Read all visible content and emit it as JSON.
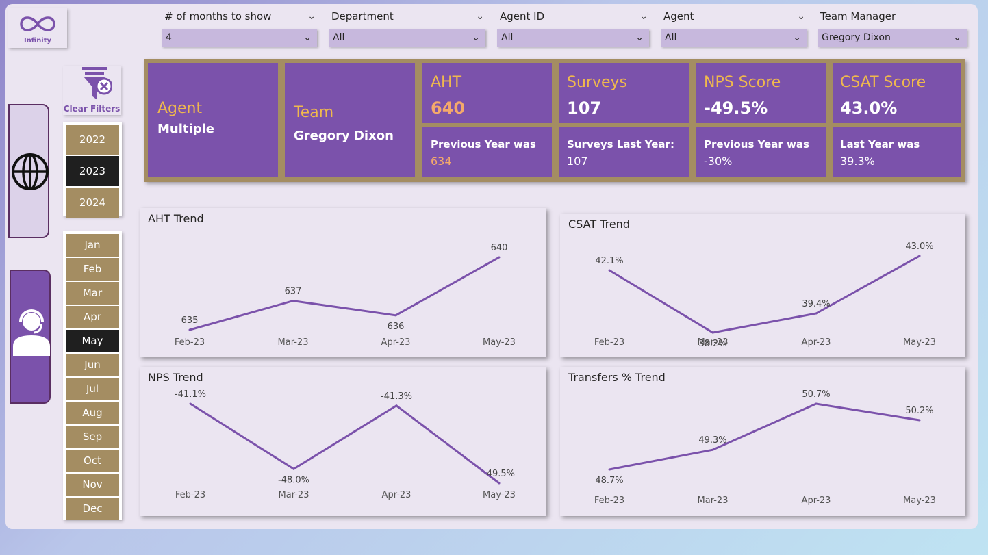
{
  "app": {
    "logo_text": "Infinity"
  },
  "filters": [
    {
      "label": "# of months to show",
      "value": "4"
    },
    {
      "label": "Department",
      "value": "All"
    },
    {
      "label": "Agent ID",
      "value": "All"
    },
    {
      "label": "Agent",
      "value": "All"
    },
    {
      "label": "Team Manager",
      "value": "Gregory Dixon"
    }
  ],
  "clear_filters_label": "Clear Filters",
  "years": [
    {
      "label": "2022",
      "selected": false
    },
    {
      "label": "2023",
      "selected": true
    },
    {
      "label": "2024",
      "selected": false
    }
  ],
  "months": [
    {
      "label": "Jan",
      "selected": false
    },
    {
      "label": "Feb",
      "selected": false
    },
    {
      "label": "Mar",
      "selected": false
    },
    {
      "label": "Apr",
      "selected": false
    },
    {
      "label": "May",
      "selected": true
    },
    {
      "label": "Jun",
      "selected": false
    },
    {
      "label": "Jul",
      "selected": false
    },
    {
      "label": "Aug",
      "selected": false
    },
    {
      "label": "Sep",
      "selected": false
    },
    {
      "label": "Oct",
      "selected": false
    },
    {
      "label": "Nov",
      "selected": false
    },
    {
      "label": "Dec",
      "selected": false
    }
  ],
  "side_nav": {
    "top_icon": "globe-icon",
    "bottom_icon": "agent-headset-icon"
  },
  "kpis": {
    "agent": {
      "title": "Agent",
      "value": "Multiple"
    },
    "team": {
      "title": "Team",
      "value": "Gregory Dixon"
    },
    "aht": {
      "title": "AHT",
      "value": "640",
      "sub_label": "Previous Year was",
      "sub_value": "634"
    },
    "surveys": {
      "title": "Surveys",
      "value": "107",
      "sub_label": "Surveys Last Year:",
      "sub_value": "107"
    },
    "nps": {
      "title": "NPS Score",
      "value": "-49.5%",
      "sub_label": "Previous Year was",
      "sub_value": "-30%"
    },
    "csat": {
      "title": "CSAT Score",
      "value": "43.0%",
      "sub_label": "Last Year was",
      "sub_value": "39.3%"
    }
  },
  "colors": {
    "accent": "#7b52ab",
    "gold": "#a48d62",
    "title_gold": "#f0b94d",
    "orange": "#f4a96b"
  },
  "chart_data": [
    {
      "type": "line",
      "title": "AHT Trend",
      "categories": [
        "Feb-23",
        "Mar-23",
        "Apr-23",
        "May-23"
      ],
      "values": [
        635,
        637,
        636,
        640
      ],
      "labels": [
        "635",
        "637",
        "636",
        "640"
      ]
    },
    {
      "type": "line",
      "title": "CSAT Trend",
      "categories": [
        "Feb-23",
        "Mar-23",
        "Apr-23",
        "May-23"
      ],
      "values": [
        42.1,
        38.2,
        39.4,
        43.0
      ],
      "labels": [
        "42.1%",
        "38.2%",
        "39.4%",
        "43.0%"
      ]
    },
    {
      "type": "line",
      "title": "NPS Trend",
      "categories": [
        "Feb-23",
        "Mar-23",
        "Apr-23",
        "May-23"
      ],
      "values": [
        -41.1,
        -48.0,
        -41.3,
        -49.5
      ],
      "labels": [
        "-41.1%",
        "-48.0%",
        "-41.3%",
        "-49.5%"
      ]
    },
    {
      "type": "line",
      "title": "Transfers % Trend",
      "categories": [
        "Feb-23",
        "Mar-23",
        "Apr-23",
        "May-23"
      ],
      "values": [
        48.7,
        49.3,
        50.7,
        50.2
      ],
      "labels": [
        "48.7%",
        "49.3%",
        "50.7%",
        "50.2%"
      ]
    }
  ]
}
